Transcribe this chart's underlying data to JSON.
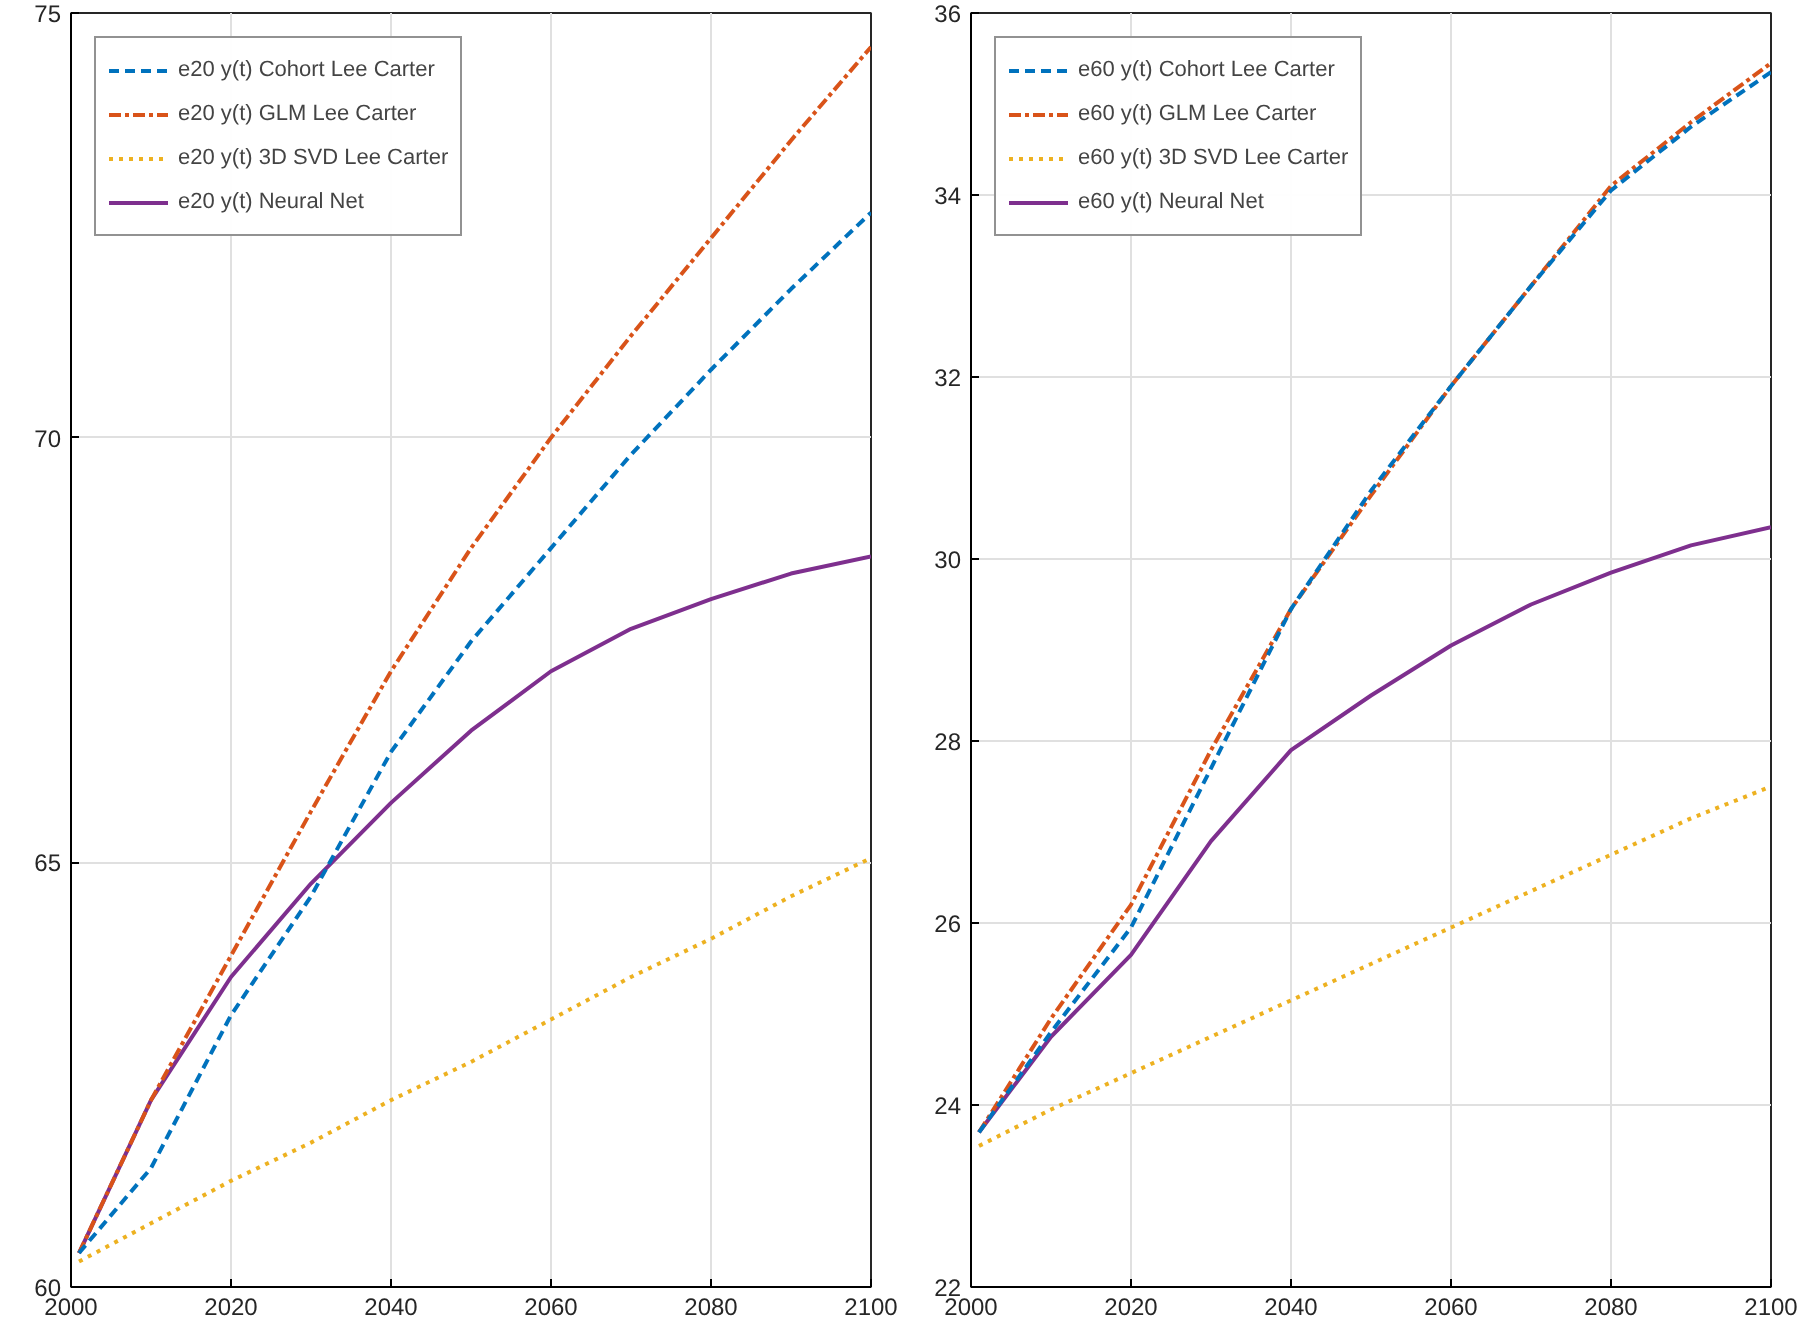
{
  "chart_data": [
    {
      "type": "line",
      "x": [
        2001,
        2010,
        2020,
        2030,
        2040,
        2050,
        2060,
        2070,
        2080,
        2090,
        2100
      ],
      "xlim": [
        2000,
        2100
      ],
      "xticks": [
        2000,
        2020,
        2040,
        2060,
        2080,
        2100
      ],
      "ylim": [
        60,
        75
      ],
      "yticks": [
        60,
        65,
        70,
        75
      ],
      "grid": true,
      "legend": "top left",
      "series": [
        {
          "name": "e20 y(t) Cohort Lee Carter",
          "color": "#0072bd",
          "line_style": "dashed",
          "values": [
            60.4,
            61.4,
            63.2,
            64.6,
            66.3,
            67.6,
            68.7,
            69.8,
            70.8,
            71.75,
            72.65
          ]
        },
        {
          "name": "e20 y(t) GLM Lee Carter",
          "color": "#d95319",
          "line_style": "dashdot",
          "values": [
            60.4,
            62.2,
            63.9,
            65.6,
            67.25,
            68.7,
            70.0,
            71.2,
            72.35,
            73.5,
            74.6
          ]
        },
        {
          "name": "e20 y(t) 3D SVD Lee Carter",
          "color": "#edb120",
          "line_style": "dotted",
          "values": [
            60.3,
            60.75,
            61.25,
            61.7,
            62.2,
            62.65,
            63.15,
            63.65,
            64.1,
            64.6,
            65.05
          ]
        },
        {
          "name": "e20 y(t) Neural Net",
          "color": "#7e2f8e",
          "line_style": "solid",
          "values": [
            60.4,
            62.2,
            63.65,
            64.75,
            65.7,
            66.55,
            67.25,
            67.75,
            68.1,
            68.4,
            68.6
          ]
        }
      ]
    },
    {
      "type": "line",
      "x": [
        2001,
        2010,
        2020,
        2030,
        2040,
        2050,
        2060,
        2070,
        2080,
        2090,
        2100
      ],
      "xlim": [
        2000,
        2100
      ],
      "xticks": [
        2000,
        2020,
        2040,
        2060,
        2080,
        2100
      ],
      "ylim": [
        22,
        36
      ],
      "yticks": [
        22,
        24,
        26,
        28,
        30,
        32,
        34,
        36
      ],
      "grid": true,
      "legend": "top left",
      "series": [
        {
          "name": "e60 y(t) Cohort Lee Carter",
          "color": "#0072bd",
          "line_style": "dashed",
          "values": [
            23.7,
            24.8,
            25.95,
            27.7,
            29.45,
            30.75,
            31.9,
            33.0,
            34.05,
            34.75,
            35.35
          ]
        },
        {
          "name": "e60 y(t) GLM Lee Carter",
          "color": "#d95319",
          "line_style": "dashdot",
          "values": [
            23.7,
            24.95,
            26.2,
            27.9,
            29.45,
            30.7,
            31.9,
            33.0,
            34.1,
            34.8,
            35.45
          ]
        },
        {
          "name": "e60 y(t) 3D SVD Lee Carter",
          "color": "#edb120",
          "line_style": "dotted",
          "values": [
            23.55,
            23.95,
            24.35,
            24.75,
            25.15,
            25.55,
            25.95,
            26.35,
            26.75,
            27.15,
            27.5
          ]
        },
        {
          "name": "e60 y(t) Neural Net",
          "color": "#7e2f8e",
          "line_style": "solid",
          "values": [
            23.7,
            24.75,
            25.65,
            26.9,
            27.9,
            28.5,
            29.05,
            29.5,
            29.85,
            30.15,
            30.35
          ]
        }
      ]
    }
  ]
}
